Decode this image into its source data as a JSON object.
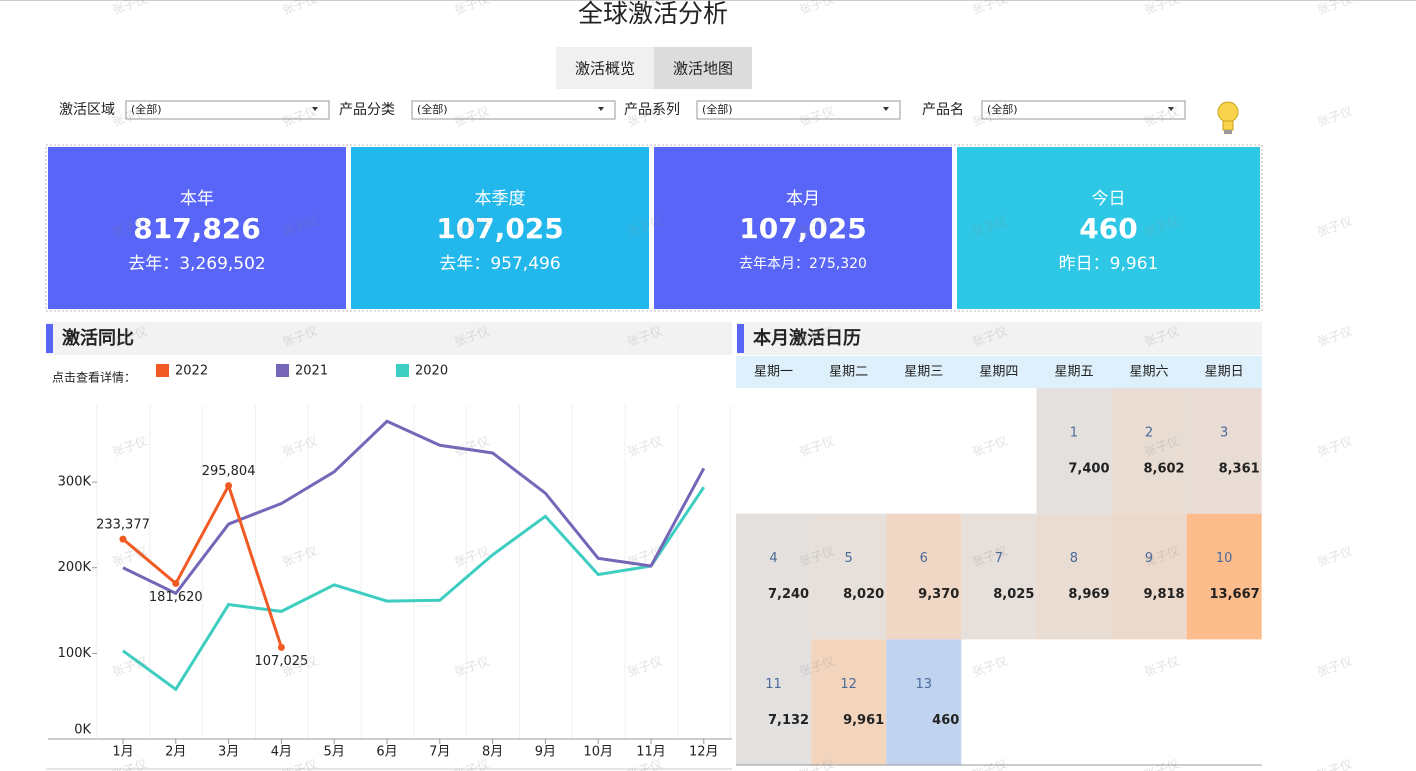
{
  "header": {
    "title": "全球激活分析",
    "tabs": [
      "激活概览",
      "激活地图"
    ]
  },
  "filters": [
    {
      "label": "激活区域",
      "value": "(全部)"
    },
    {
      "label": "产品分类",
      "value": "(全部)"
    },
    {
      "label": "产品系列",
      "value": "(全部)"
    },
    {
      "label": "产品名",
      "value": "(全部)"
    }
  ],
  "kpis": [
    {
      "label": "本年",
      "value": "817,826",
      "sub": "去年：3,269,502",
      "color": "#5865f7"
    },
    {
      "label": "本季度",
      "value": "107,025",
      "sub": "去年：957,496",
      "color": "#22b8ec"
    },
    {
      "label": "本月",
      "value": "107,025",
      "sub": "去年本月：275,320",
      "color": "#5865f7"
    },
    {
      "label": "今日",
      "value": "460",
      "sub": "昨日：9,961",
      "color": "#2ec8e6"
    }
  ],
  "chart_data": {
    "type": "line",
    "title": "激活同比",
    "legend_prompt": "点击查看详情：",
    "categories": [
      "1月",
      "2月",
      "3月",
      "4月",
      "5月",
      "6月",
      "7月",
      "8月",
      "9月",
      "10月",
      "11月",
      "12月"
    ],
    "series": [
      {
        "name": "2022",
        "color": "#f15a22",
        "values": [
          233377,
          181620,
          295804,
          107025,
          null,
          null,
          null,
          null,
          null,
          null,
          null,
          null
        ],
        "value_labels": [
          "233,377",
          "181,620",
          "295,804",
          "107,025",
          null,
          null,
          null,
          null,
          null,
          null,
          null,
          null
        ]
      },
      {
        "name": "2021",
        "color": "#7566b8",
        "values": [
          200000,
          170000,
          251000,
          275000,
          312000,
          371000,
          343000,
          334000,
          287000,
          211000,
          202000,
          316000
        ]
      },
      {
        "name": "2020",
        "color": "#3dcdc1",
        "values": [
          103000,
          58000,
          157000,
          149000,
          180000,
          161000,
          162000,
          215000,
          260000,
          192000,
          202000,
          294000
        ]
      }
    ],
    "ylim": [
      0,
      390000
    ],
    "yticks": [
      {
        "value": 0,
        "label": "0K"
      },
      {
        "value": 100000,
        "label": "100K"
      },
      {
        "value": 200000,
        "label": "200K"
      },
      {
        "value": 300000,
        "label": "300K"
      }
    ]
  },
  "calendar": {
    "title": "本月激活日历",
    "weekdays": [
      "星期一",
      "星期二",
      "星期三",
      "星期四",
      "星期五",
      "星期六",
      "星期日"
    ],
    "days": [
      {
        "day": "1",
        "value": "7,400",
        "color": "#e4e0dd"
      },
      {
        "day": "2",
        "value": "8,602",
        "color": "#e8dcd3"
      },
      {
        "day": "3",
        "value": "8,361",
        "color": "#e8dcd4"
      },
      {
        "day": "4",
        "value": "7,240",
        "color": "#e4e0dd"
      },
      {
        "day": "5",
        "value": "8,020",
        "color": "#e6dfda"
      },
      {
        "day": "6",
        "value": "9,370",
        "color": "#efd6c5"
      },
      {
        "day": "7",
        "value": "8,025",
        "color": "#e6dfda"
      },
      {
        "day": "8",
        "value": "8,969",
        "color": "#e8dcd3"
      },
      {
        "day": "9",
        "value": "9,818",
        "color": "#ebd9cc"
      },
      {
        "day": "10",
        "value": "13,667",
        "color": "#fdbc8c"
      },
      {
        "day": "11",
        "value": "7,132",
        "color": "#e3e1e0"
      },
      {
        "day": "12",
        "value": "9,961",
        "color": "#f3d5be"
      },
      {
        "day": "13",
        "value": "460",
        "color": "#c0d4f0"
      }
    ]
  },
  "watermark": "张子仪"
}
